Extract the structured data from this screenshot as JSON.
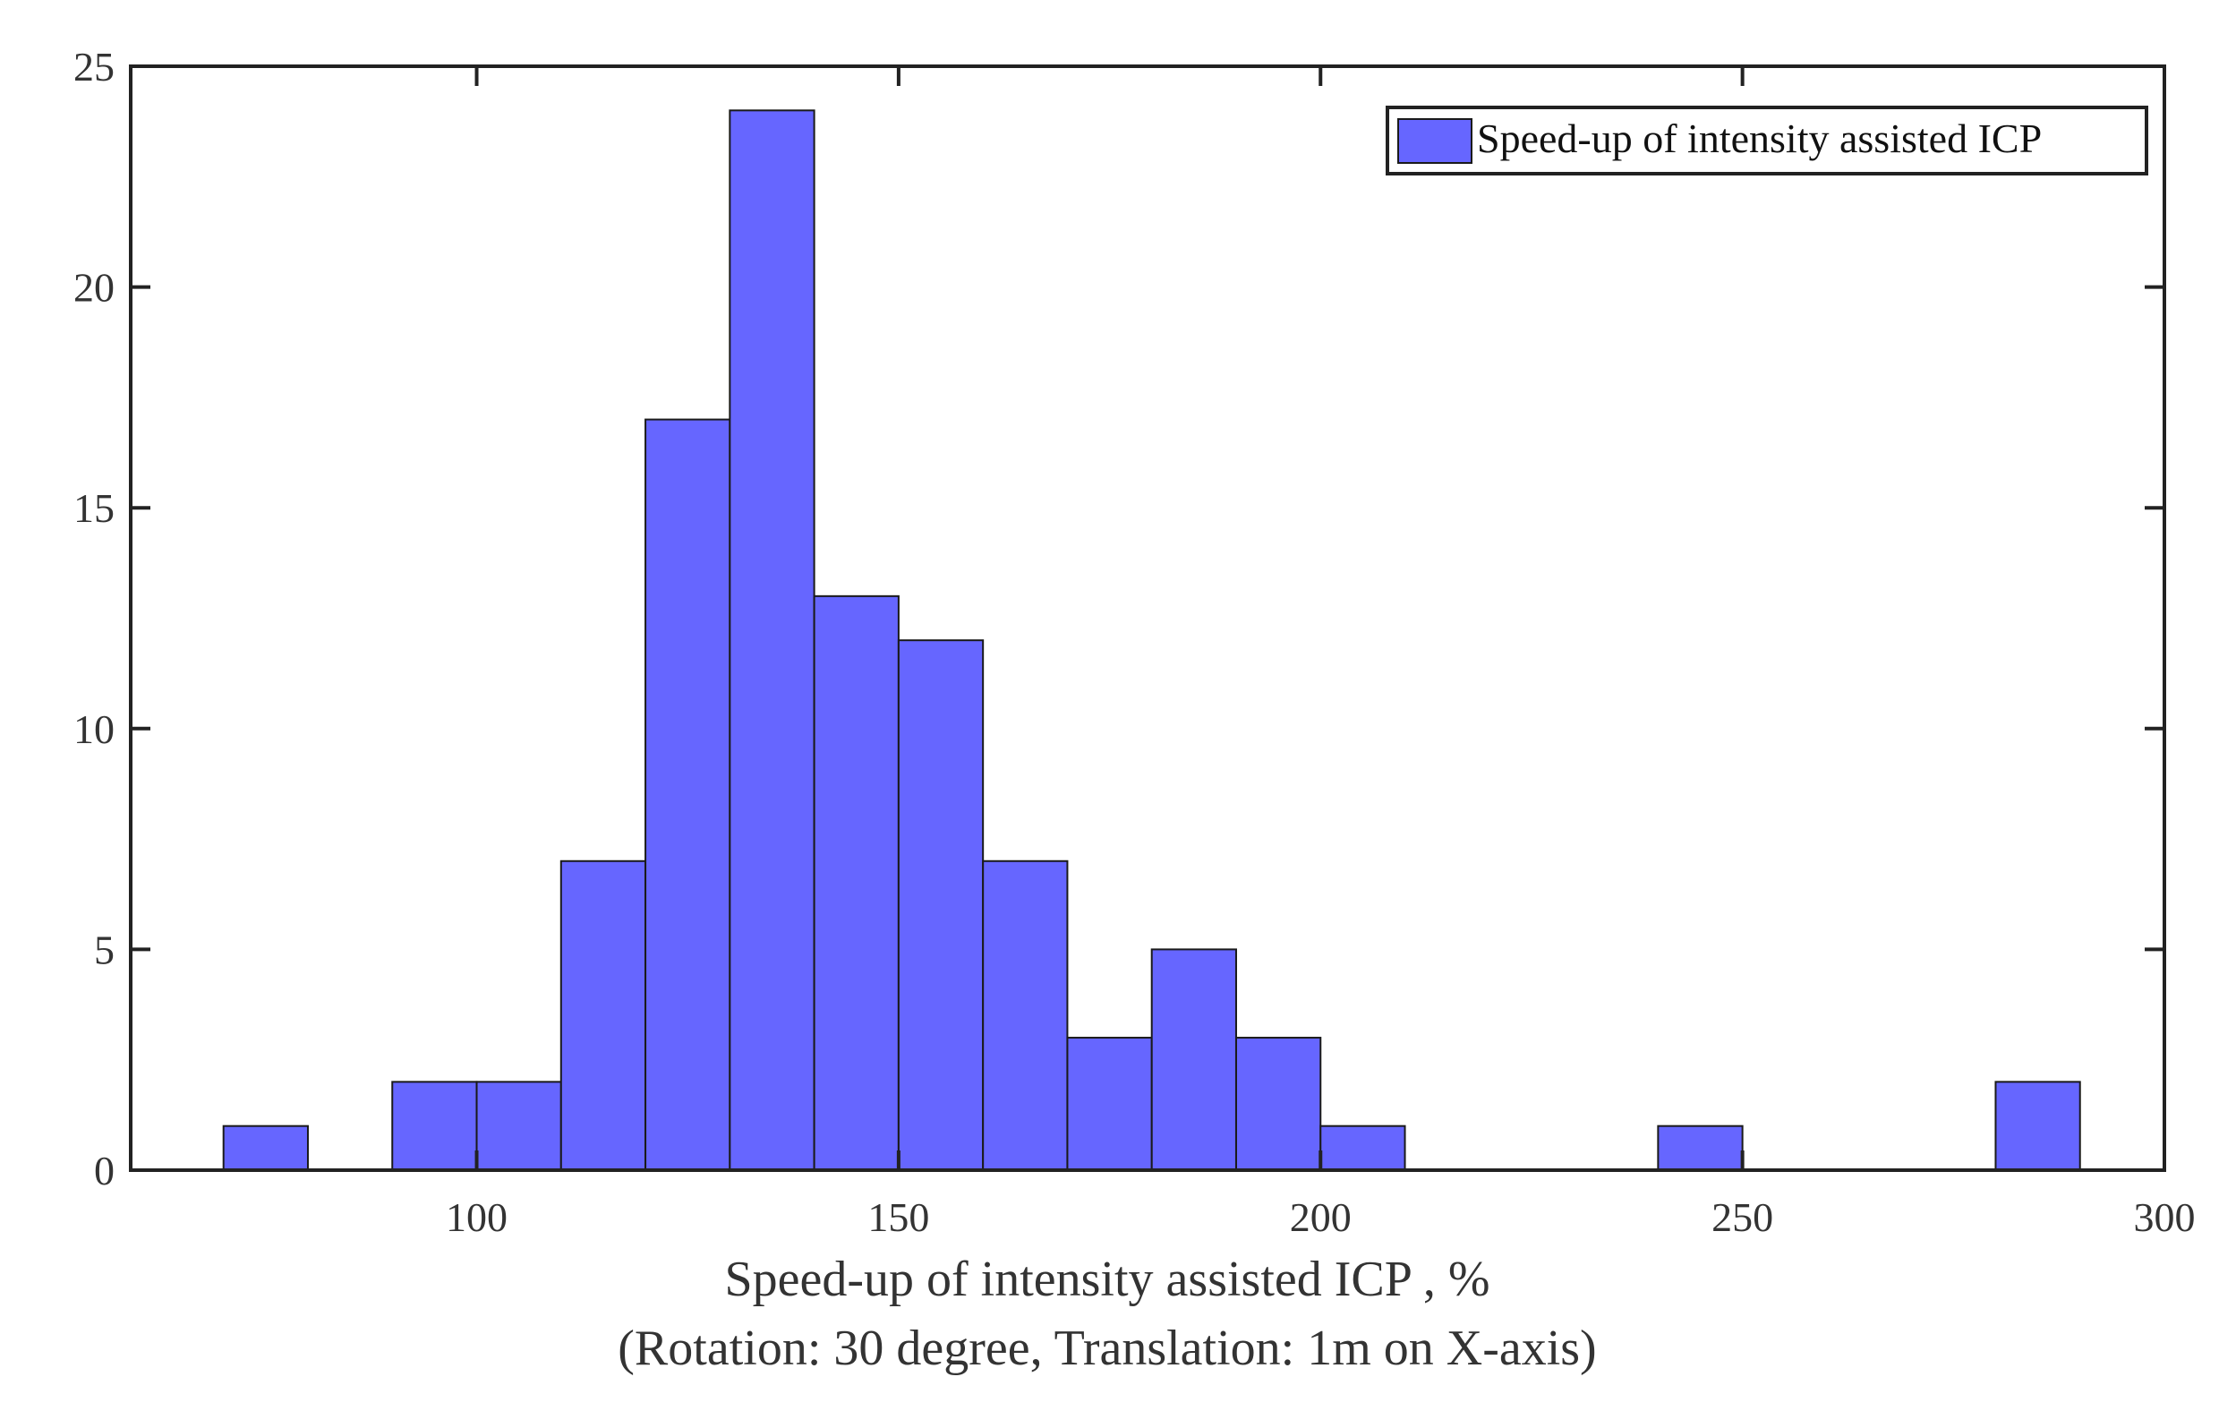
{
  "chart_data": {
    "type": "bar",
    "subtype": "histogram",
    "bin_width": 10,
    "bins": [
      {
        "start": 70,
        "end": 80,
        "count": 1
      },
      {
        "start": 80,
        "end": 90,
        "count": 0
      },
      {
        "start": 90,
        "end": 100,
        "count": 2
      },
      {
        "start": 100,
        "end": 110,
        "count": 2
      },
      {
        "start": 110,
        "end": 120,
        "count": 7
      },
      {
        "start": 120,
        "end": 130,
        "count": 17
      },
      {
        "start": 130,
        "end": 140,
        "count": 24
      },
      {
        "start": 140,
        "end": 150,
        "count": 13
      },
      {
        "start": 150,
        "end": 160,
        "count": 12
      },
      {
        "start": 160,
        "end": 170,
        "count": 7
      },
      {
        "start": 170,
        "end": 180,
        "count": 3
      },
      {
        "start": 180,
        "end": 190,
        "count": 5
      },
      {
        "start": 190,
        "end": 200,
        "count": 3
      },
      {
        "start": 200,
        "end": 210,
        "count": 1
      },
      {
        "start": 240,
        "end": 250,
        "count": 1
      },
      {
        "start": 280,
        "end": 290,
        "count": 2
      }
    ],
    "series_name": "Speed-up of intensity assisted ICP",
    "title": "",
    "xlabel": "Speed-up of intensity assisted ICP , %",
    "xlabel_line2": "(Rotation: 30 degree, Translation: 1m on X-axis)",
    "ylabel": "",
    "xlim": [
      59,
      300
    ],
    "ylim": [
      0,
      25
    ],
    "xticks": [
      100,
      150,
      200,
      250,
      300
    ],
    "yticks": [
      0,
      5,
      10,
      15,
      20,
      25
    ],
    "grid": false,
    "legend_position": "top-right",
    "colors": {
      "bar_fill": "#6666ff",
      "bar_edge": "#1a1a1a",
      "axis": "#222222",
      "text": "#333333"
    }
  }
}
